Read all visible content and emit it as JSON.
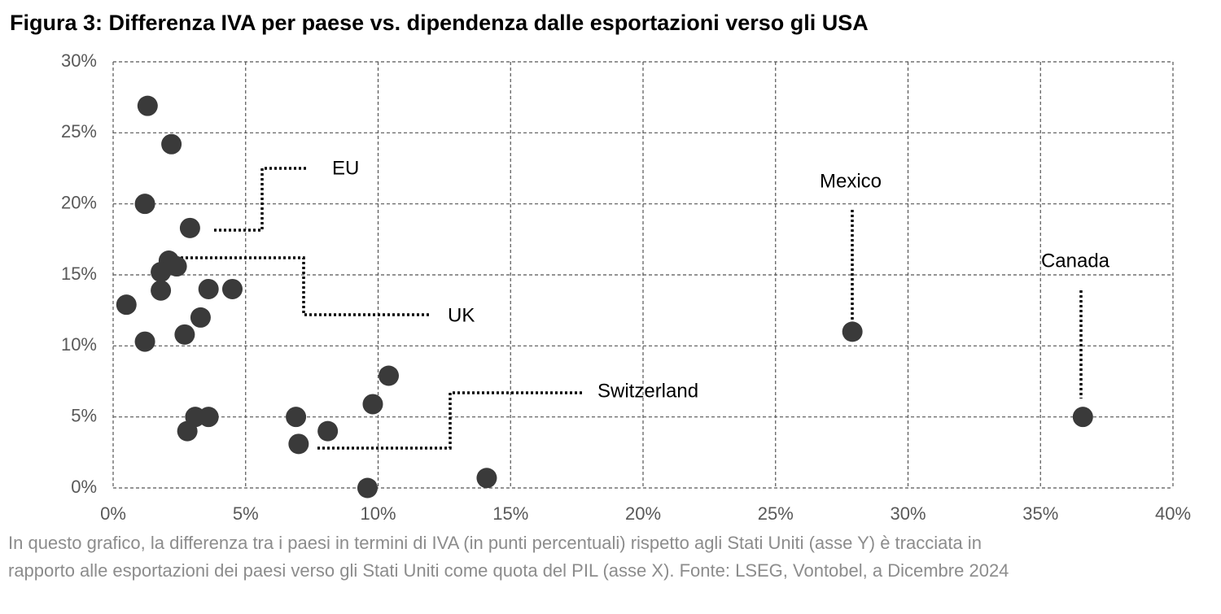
{
  "chart_data": {
    "type": "scatter",
    "title": "Figura 3: Differenza IVA per paese vs. dipendenza dalle esportazioni verso gli USA",
    "x": [
      1.3,
      2.2,
      1.2,
      2.9,
      2.1,
      2.4,
      1.8,
      1.8,
      3.6,
      4.5,
      0.5,
      3.3,
      1.2,
      2.7,
      3.1,
      3.6,
      2.8,
      6.9,
      7.0,
      8.1,
      9.8,
      10.4,
      9.6,
      14.1,
      27.9,
      36.6
    ],
    "values": [
      26.9,
      24.2,
      20.0,
      18.3,
      16.0,
      15.6,
      15.2,
      13.9,
      14.0,
      14.0,
      12.9,
      12.0,
      10.3,
      10.8,
      5.0,
      5.0,
      4.0,
      5.0,
      3.1,
      4.0,
      5.9,
      7.9,
      0.0,
      0.7,
      11.0,
      5.0
    ],
    "color": "#3a3a3a",
    "xlim": [
      0,
      40
    ],
    "ylim": [
      0,
      30
    ],
    "xticks": [
      {
        "value": 0,
        "label": "0%"
      },
      {
        "value": 5,
        "label": "5%"
      },
      {
        "value": 10,
        "label": "10%"
      },
      {
        "value": 15,
        "label": "15%"
      },
      {
        "value": 20,
        "label": "20%"
      },
      {
        "value": 25,
        "label": "25%"
      },
      {
        "value": 30,
        "label": "30%"
      },
      {
        "value": 35,
        "label": "35%"
      },
      {
        "value": 40,
        "label": "40%"
      }
    ],
    "yticks": [
      {
        "value": 0,
        "label": "0%"
      },
      {
        "value": 5,
        "label": "5%"
      },
      {
        "value": 10,
        "label": "10%"
      },
      {
        "value": 15,
        "label": "15%"
      },
      {
        "value": 20,
        "label": "20%"
      },
      {
        "value": 25,
        "label": "25%"
      },
      {
        "value": 30,
        "label": "30%"
      }
    ],
    "grid": true,
    "annotations": [
      "EU",
      "UK",
      "Switzerland",
      "Mexico",
      "Canada"
    ],
    "caption": [
      "In questo grafico, la differenza tra i paesi in termini di IVA (in punti percentuali) rispetto agli Stati Uniti (asse Y) è tracciata in",
      "rapporto alle esportazioni dei paesi verso gli Stati Uniti come quota del PIL (asse X). Fonte: LSEG, Vontobel, a Dicembre 2024"
    ]
  }
}
